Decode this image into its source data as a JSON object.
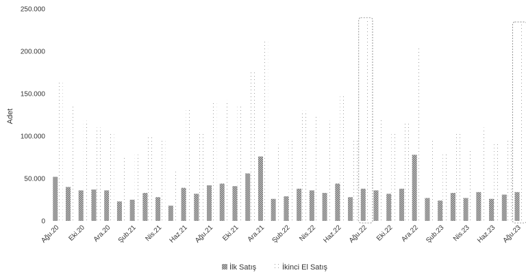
{
  "chart_data": {
    "type": "bar",
    "ylabel": "Adet",
    "ylim": [
      0,
      250000
    ],
    "y_ticks": [
      "0",
      "50.000",
      "100.000",
      "150.000",
      "200.000",
      "250.000"
    ],
    "categories": [
      "Ağu.20",
      "Eyl.20",
      "Eki.20",
      "Kas.20",
      "Ara.20",
      "Oca.21",
      "Şub.21",
      "Mar.21",
      "Nis.21",
      "May.21",
      "Haz.21",
      "Tem.21",
      "Ağu.21",
      "Eyl.21",
      "Eki.21",
      "Kas.21",
      "Ara.21",
      "Oca.22",
      "Şub.22",
      "Mar.22",
      "Nis.22",
      "May.22",
      "Haz.22",
      "Tem.22",
      "Ağu.22",
      "Eyl.22",
      "Eki.22",
      "Kas.22",
      "Ara.22",
      "Oca.23",
      "Şub.23",
      "Mar.23",
      "Nis.23",
      "May.23",
      "Haz.23",
      "Tem.23",
      "Ağu.23"
    ],
    "x_tick_labels": [
      "Ağu.20",
      "Eki.20",
      "Ara.20",
      "Şub.21",
      "Nis.21",
      "Haz.21",
      "Ağu.21",
      "Eki.21",
      "Ara.21",
      "Şub.22",
      "Nis.22",
      "Haz.22",
      "Ağu.22",
      "Eki.22",
      "Ara.22",
      "Şub.23",
      "Nis.23",
      "Haz.23",
      "Ağu.23"
    ],
    "series": [
      {
        "name": "İlk Satış",
        "color": "#8c8c8c",
        "values": [
          52000,
          40000,
          36000,
          37000,
          36000,
          23000,
          25000,
          33000,
          28000,
          18000,
          39000,
          32000,
          42000,
          44000,
          41000,
          56000,
          76000,
          26000,
          29000,
          38000,
          36000,
          33000,
          44000,
          28000,
          38000,
          36000,
          32000,
          38000,
          78000,
          27000,
          24000,
          33000,
          27000,
          34000,
          26000,
          31000,
          34000
        ]
      },
      {
        "name": "İkinci El Satış",
        "color": "#b5b5b5",
        "values": [
          165000,
          135000,
          118000,
          110000,
          105000,
          75000,
          78000,
          100000,
          95000,
          58000,
          132000,
          103000,
          140000,
          142000,
          135000,
          178000,
          213000,
          90000,
          95000,
          130000,
          125000,
          118000,
          150000,
          95000,
          238000,
          120000,
          103000,
          115000,
          206000,
          95000,
          80000,
          105000,
          85000,
          110000,
          92000,
          95000,
          233000
        ]
      }
    ],
    "legend": "bottom",
    "grid": false,
    "highlighted_categories": [
      "Ağu.22",
      "Ağu.23"
    ]
  }
}
